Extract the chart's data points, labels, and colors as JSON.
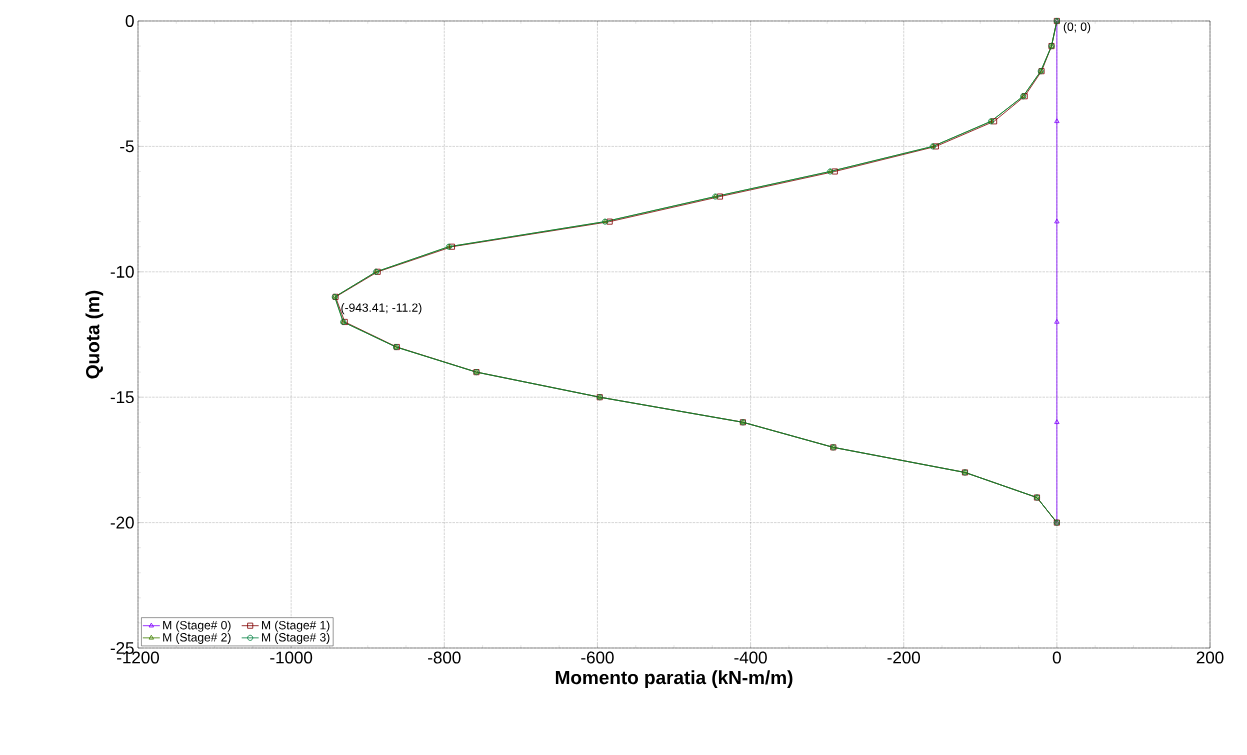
{
  "chart_data": {
    "type": "line",
    "xlabel": "Momento paratia (kN-m/m)",
    "ylabel": "Quota (m)",
    "xlim": [
      -1200,
      200
    ],
    "ylim": [
      -25,
      0
    ],
    "xticks": [
      -1200,
      -1000,
      -800,
      -600,
      -400,
      -200,
      0,
      200
    ],
    "yticks": [
      -25,
      -20,
      -15,
      -10,
      -5,
      0
    ],
    "grid": true,
    "legend": "bottom left",
    "line_style": "solid",
    "series": [
      {
        "name": "M (Stage# 0)",
        "color": "#8000ff",
        "marker": "triangle",
        "x": [
          0,
          0,
          0,
          0,
          0,
          0
        ],
        "values": [
          0,
          -4,
          -8,
          -12,
          -16,
          -20
        ]
      },
      {
        "name": "M (Stage# 1)",
        "color": "#800000",
        "marker": "square",
        "x": [
          0,
          -7,
          -20,
          -42,
          -82,
          -158,
          -290,
          -440,
          -584,
          -790,
          -887,
          -942,
          -930,
          -862,
          -758,
          -597,
          -410,
          -292,
          -120,
          -26,
          0
        ],
        "values": [
          0,
          -1,
          -2,
          -3,
          -4,
          -5,
          -6,
          -7,
          -8,
          -9,
          -10,
          -11,
          -12,
          -13,
          -14,
          -15,
          -16,
          -17,
          -18,
          -19,
          -20
        ]
      },
      {
        "name": "M (Stage# 2)",
        "color": "#408000",
        "marker": "triangle",
        "x": [
          0,
          -7,
          -21,
          -44,
          -86,
          -162,
          -296,
          -446,
          -590,
          -794,
          -889,
          -943,
          -932,
          -863,
          -758,
          -597,
          -410,
          -292,
          -120,
          -26,
          0
        ],
        "values": [
          0,
          -1,
          -2,
          -3,
          -4,
          -5,
          -6,
          -7,
          -8,
          -9,
          -10,
          -11,
          -12,
          -13,
          -14,
          -15,
          -16,
          -17,
          -18,
          -19,
          -20
        ]
      },
      {
        "name": "M (Stage# 3)",
        "color": "#008040",
        "marker": "circle",
        "x": [
          0,
          -7,
          -21,
          -44,
          -86,
          -162,
          -296,
          -446,
          -590,
          -794,
          -889,
          -943,
          -932,
          -863,
          -758,
          -597,
          -410,
          -292,
          -120,
          -26,
          0
        ],
        "values": [
          0,
          -1,
          -2,
          -3,
          -4,
          -5,
          -6,
          -7,
          -8,
          -9,
          -10,
          -11,
          -12,
          -13,
          -14,
          -15,
          -16,
          -17,
          -18,
          -19,
          -20
        ]
      }
    ],
    "annotations": [
      {
        "text": "(0; 0)",
        "x": 0,
        "y": 0
      },
      {
        "text": "(-943.41; -11.2)",
        "x": -943.41,
        "y": -11.2
      }
    ]
  }
}
